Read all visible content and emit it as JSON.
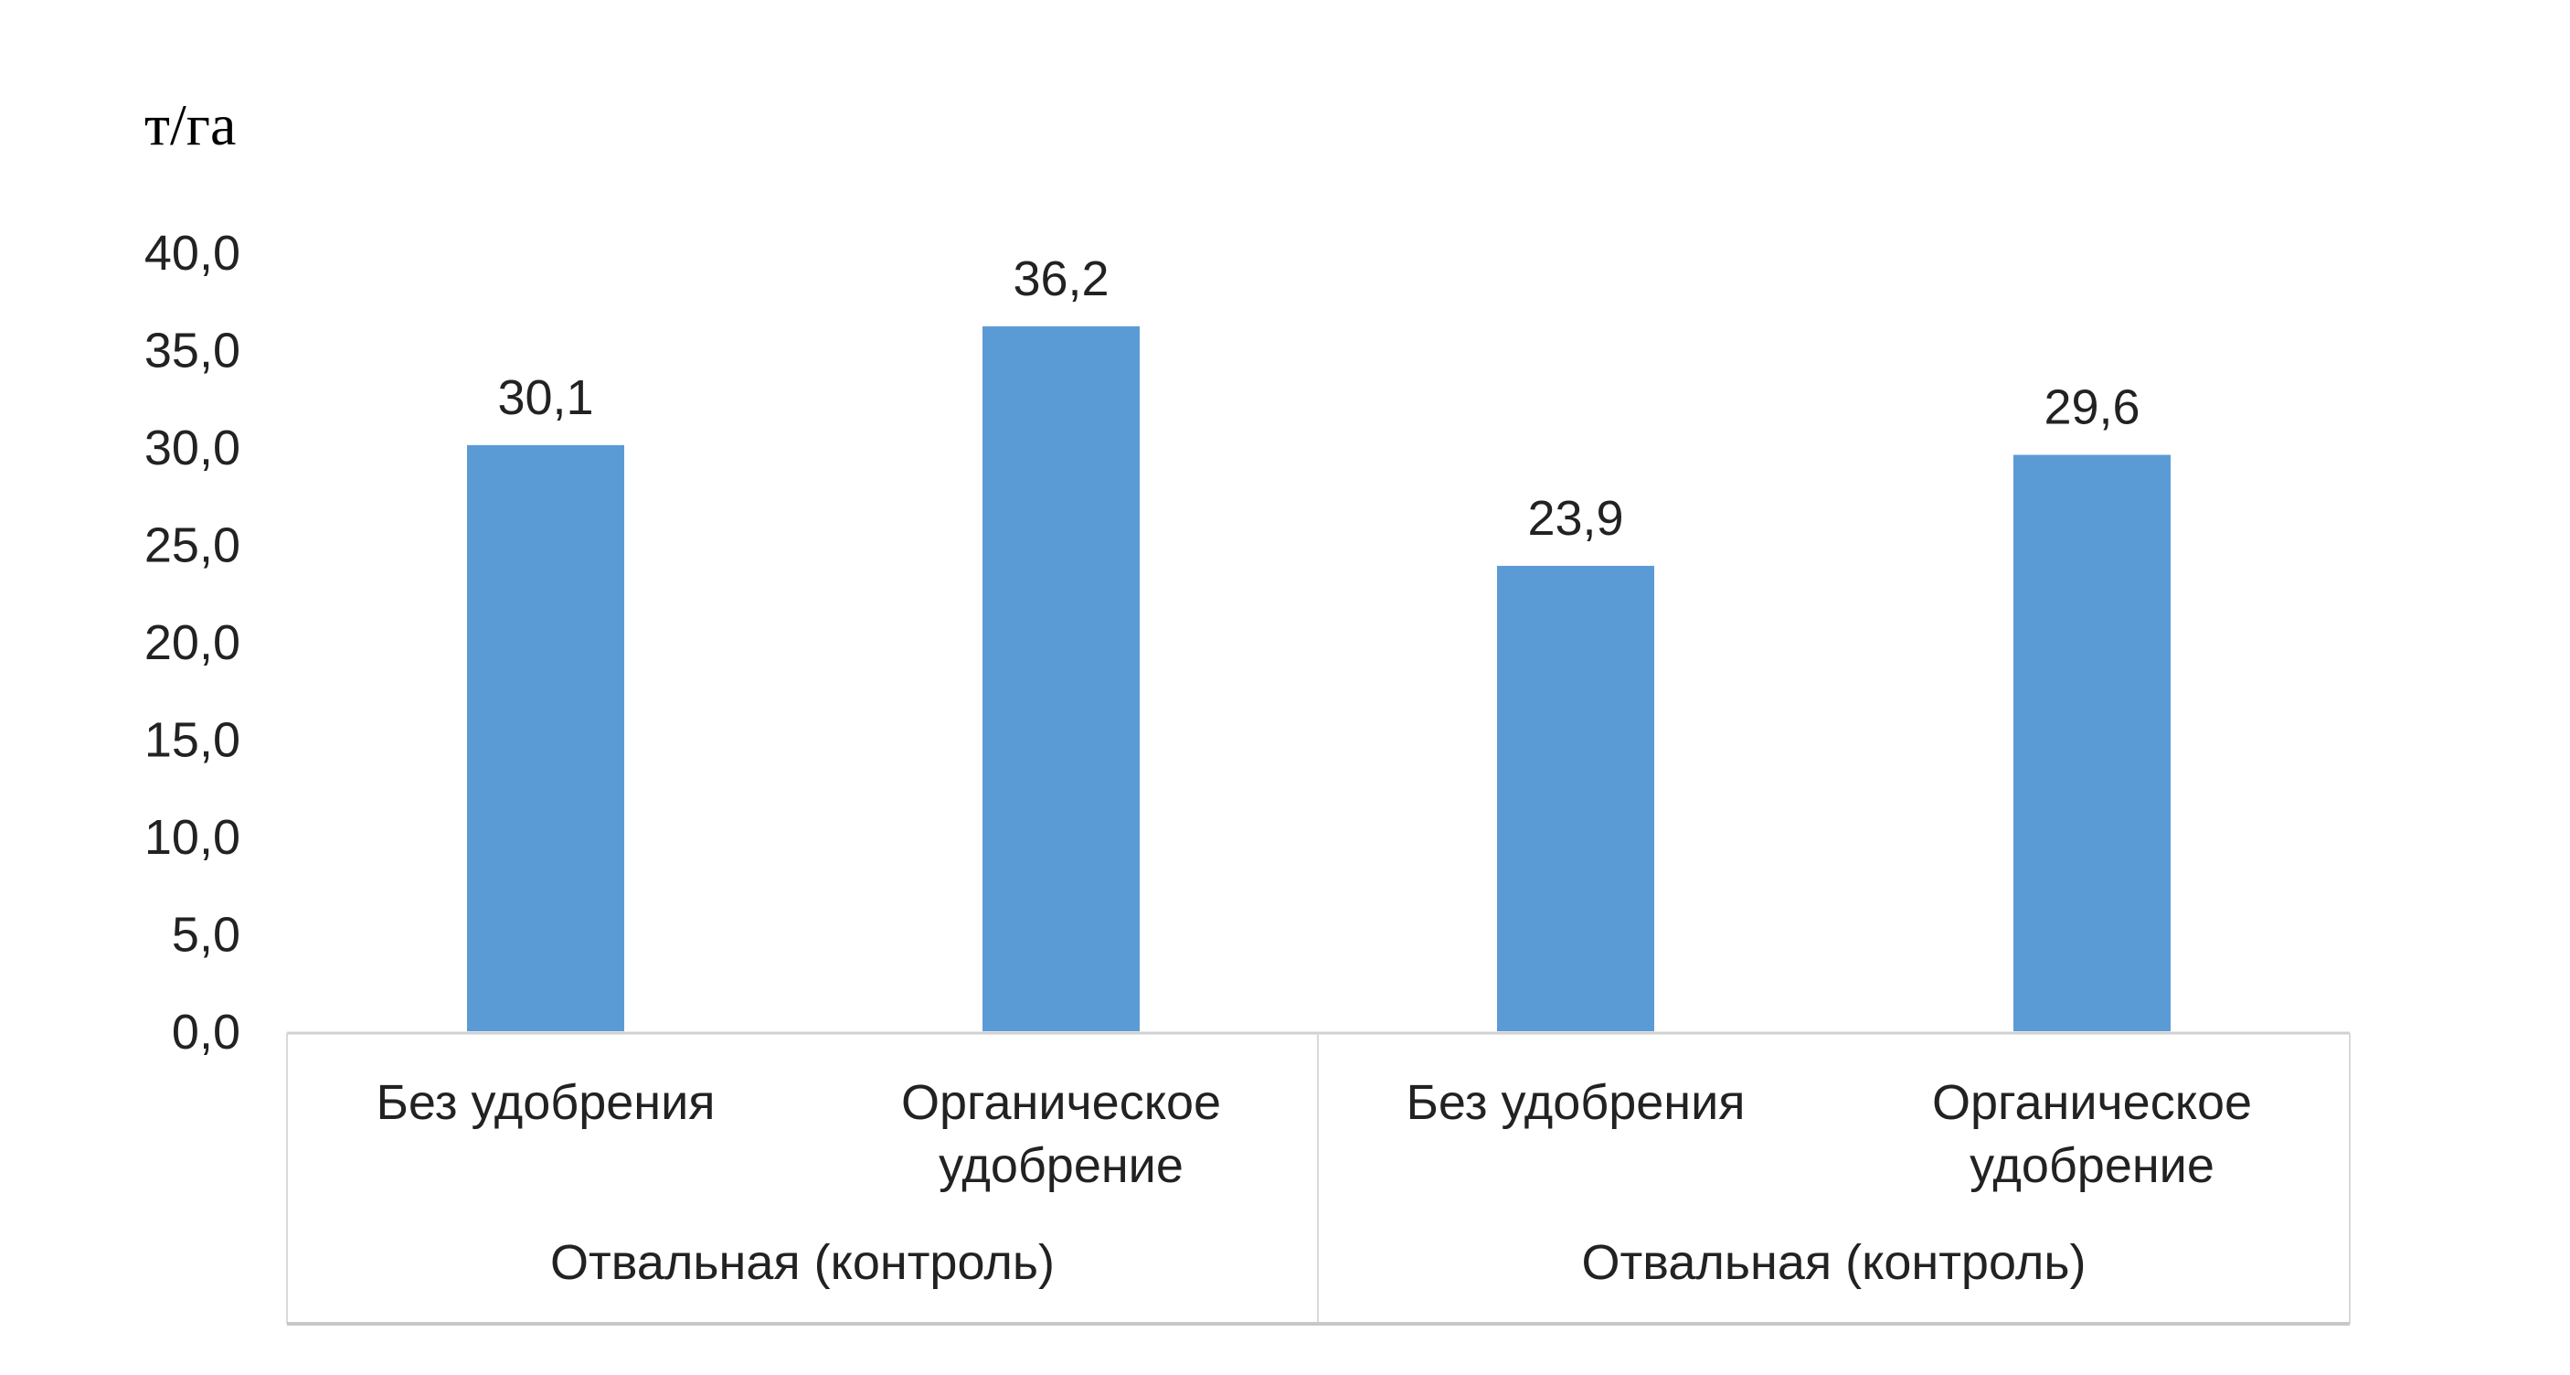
{
  "chart_data": {
    "type": "bar",
    "ylabel": "т/га",
    "ylim": [
      0,
      40
    ],
    "yticks": [
      "0,0",
      "5,0",
      "10,0",
      "15,0",
      "20,0",
      "25,0",
      "30,0",
      "35,0",
      "40,0"
    ],
    "grid": false,
    "legend": "none",
    "bar_color": "#5B9BD5",
    "categories": [
      {
        "label": [
          "Без удобрения"
        ],
        "group": 0
      },
      {
        "label": [
          "Органическое",
          "удобрение"
        ],
        "group": 0
      },
      {
        "label": [
          "Без удобрения"
        ],
        "group": 1
      },
      {
        "label": [
          "Органическое",
          "удобрение"
        ],
        "group": 1
      }
    ],
    "groups": [
      "Отвальная (контроль)",
      "Отвальная (контроль)"
    ],
    "values": [
      30.1,
      36.2,
      23.9,
      29.6
    ],
    "data_labels": [
      "30,1",
      "36,2",
      "23,9",
      "29,6"
    ]
  }
}
